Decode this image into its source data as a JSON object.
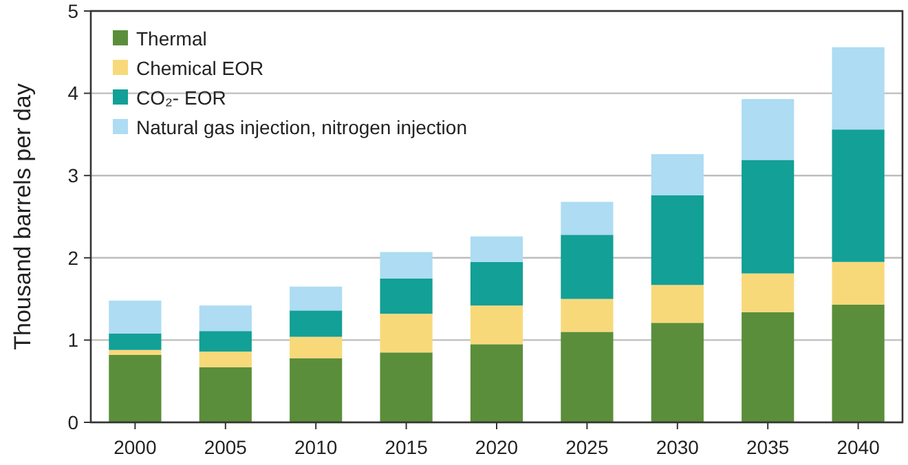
{
  "chart_data": {
    "type": "bar",
    "stacked": true,
    "ylabel": "Thousand barrels per day",
    "categories": [
      "2000",
      "2005",
      "2010",
      "2015",
      "2020",
      "2025",
      "2030",
      "2035",
      "2040"
    ],
    "series": [
      {
        "name": "Thermal",
        "color": "#5b8e3a",
        "values": [
          0.82,
          0.67,
          0.78,
          0.85,
          0.95,
          1.1,
          1.21,
          1.34,
          1.43
        ]
      },
      {
        "name": "Chemical EOR",
        "color": "#f8d97a",
        "values": [
          0.06,
          0.19,
          0.26,
          0.47,
          0.47,
          0.4,
          0.46,
          0.47,
          0.52
        ]
      },
      {
        "name": "CO₂- EOR",
        "color": "#13a096",
        "values": [
          0.2,
          0.25,
          0.32,
          0.43,
          0.53,
          0.78,
          1.09,
          1.38,
          1.61
        ]
      },
      {
        "name": "Natural gas injection, nitrogen injection",
        "color": "#addcf3",
        "values": [
          0.4,
          0.31,
          0.29,
          0.32,
          0.31,
          0.4,
          0.5,
          0.74,
          1.0
        ]
      }
    ],
    "ylim": [
      0,
      5
    ],
    "yticks": [
      0,
      1,
      2,
      3,
      4,
      5
    ],
    "grid": "y",
    "legend": "top left"
  }
}
